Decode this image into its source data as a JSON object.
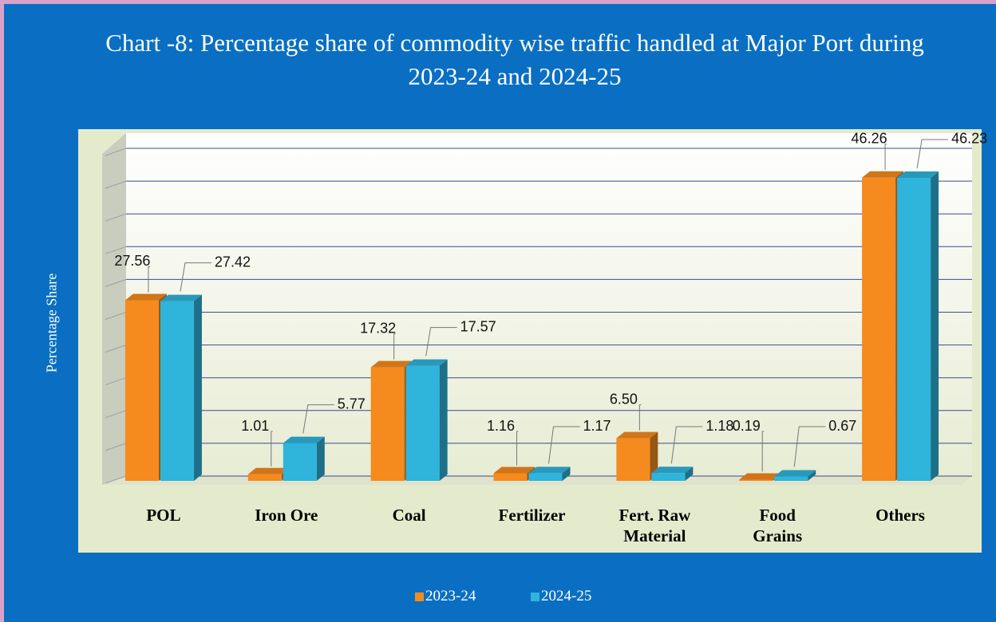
{
  "chart_data": {
    "type": "bar",
    "title": "Chart -8: Percentage share of commodity wise traffic handled at Major Port during 2023-24 and 2024-25",
    "y_label": "Percentage Share",
    "categories": [
      "POL",
      "Iron Ore",
      "Coal",
      "Fertilizer",
      "Fert. Raw Material",
      "Food Grains",
      "Others"
    ],
    "series": [
      {
        "name": "2023-24",
        "color": "#f58a1f",
        "values": [
          27.56,
          1.01,
          17.32,
          1.16,
          6.5,
          0.19,
          46.26
        ],
        "value_labels": [
          "27.56",
          "1.01",
          "17.32",
          "1.16",
          "6.50",
          "0.19",
          "46.26"
        ]
      },
      {
        "name": "2024-25",
        "color": "#2fb4dc",
        "values": [
          27.42,
          5.77,
          17.57,
          1.17,
          1.18,
          0.67,
          46.23
        ]
      }
    ],
    "ylim": [
      0,
      50
    ],
    "yticks": [
      0,
      5,
      10,
      15,
      20,
      25,
      30,
      35,
      40,
      45,
      50
    ],
    "grid": true,
    "legend": "bottom"
  }
}
